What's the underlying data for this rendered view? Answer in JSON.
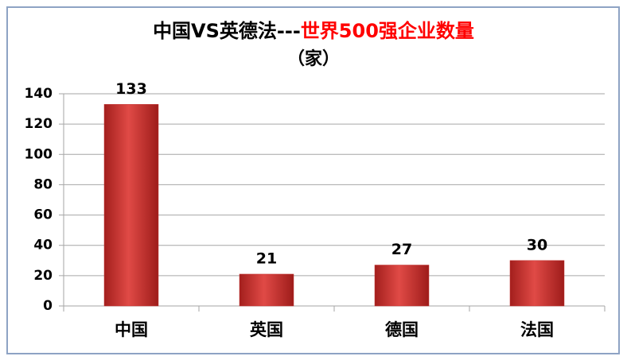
{
  "chart_data": {
    "type": "bar",
    "title": [
      "中国VS英德法---",
      "世界500强企业数量"
    ],
    "title_colors": [
      "#000000",
      "#ff0000"
    ],
    "subtitle": "（家）",
    "categories": [
      "中国",
      "英国",
      "德国",
      "法国"
    ],
    "values": [
      133,
      21,
      27,
      30
    ],
    "color": "#c0302e",
    "ylim": [
      0,
      140
    ],
    "yticks": [
      0,
      20,
      40,
      60,
      80,
      100,
      120,
      140
    ],
    "grid": true
  }
}
